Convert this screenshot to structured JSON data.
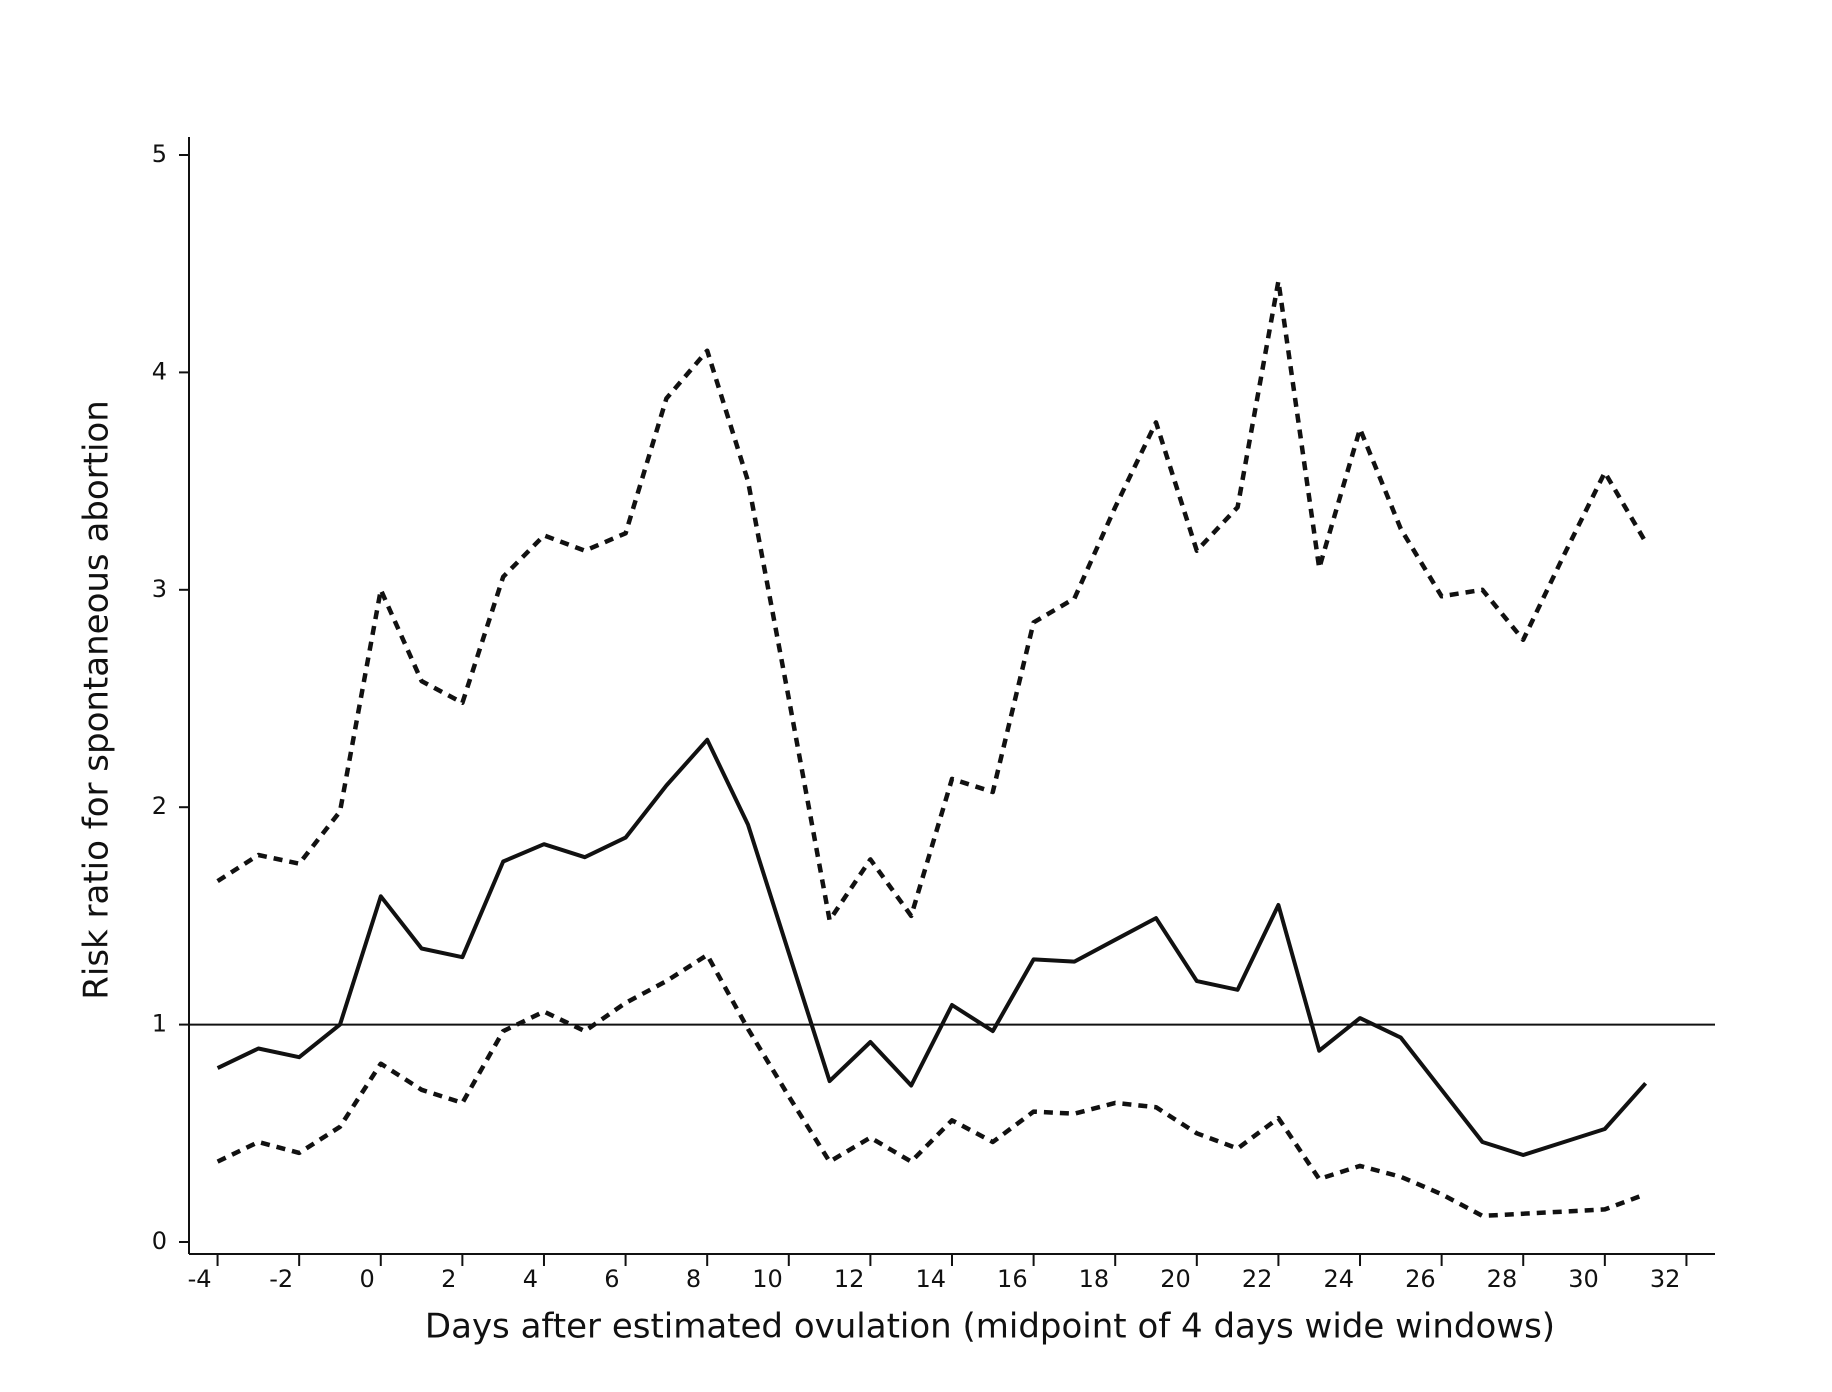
{
  "chart_data": {
    "type": "line",
    "x_label": "Days after estimated ovulation (midpoint of 4 days wide windows)",
    "y_label": "Risk ratio for spontaneous abortion",
    "x": [
      -4,
      -3,
      -2,
      -1,
      0,
      1,
      2,
      3,
      4,
      5,
      6,
      7,
      8,
      9,
      10,
      11,
      12,
      13,
      14,
      15,
      16,
      17,
      18,
      19,
      20,
      21,
      22,
      23,
      24,
      25,
      26,
      27,
      28,
      29,
      30,
      31
    ],
    "series": [
      {
        "color": "#111111",
        "style": "solid",
        "values": [
          0.8,
          0.89,
          0.85,
          1.0,
          1.59,
          1.35,
          1.31,
          1.75,
          1.83,
          1.77,
          1.86,
          2.1,
          2.31,
          1.92,
          1.33,
          0.74,
          0.92,
          0.72,
          1.09,
          0.97,
          1.3,
          1.29,
          1.39,
          1.49,
          1.2,
          1.16,
          1.55,
          0.88,
          1.03,
          0.94,
          0.7,
          0.46,
          0.4,
          0.46,
          0.52,
          0.73
        ]
      },
      {
        "color": "#111111",
        "style": "dashed",
        "values": [
          1.66,
          1.78,
          1.74,
          1.98,
          3.0,
          2.58,
          2.48,
          3.06,
          3.25,
          3.18,
          3.26,
          3.88,
          4.1,
          3.5,
          2.5,
          1.48,
          1.76,
          1.5,
          2.13,
          2.07,
          2.85,
          2.96,
          3.38,
          3.77,
          3.18,
          3.38,
          4.42,
          3.1,
          3.74,
          3.28,
          2.97,
          3.0,
          2.77,
          3.16,
          3.54,
          3.22
        ]
      },
      {
        "color": "#111111",
        "style": "dashed",
        "values": [
          0.37,
          0.46,
          0.41,
          0.53,
          0.82,
          0.7,
          0.64,
          0.97,
          1.06,
          0.97,
          1.1,
          1.2,
          1.32,
          0.98,
          0.67,
          0.37,
          0.48,
          0.37,
          0.56,
          0.46,
          0.6,
          0.59,
          0.64,
          0.62,
          0.5,
          0.43,
          0.57,
          0.29,
          0.35,
          0.3,
          0.22,
          0.12,
          0.13,
          0.14,
          0.15,
          0.22
        ]
      }
    ],
    "reference_line": 1,
    "xlim": [
      -4.7,
      32.7
    ],
    "ylim": [
      0,
      5
    ],
    "xticks": [
      -4,
      -2,
      0,
      2,
      4,
      6,
      8,
      10,
      12,
      14,
      16,
      18,
      20,
      22,
      24,
      26,
      28,
      30,
      32
    ],
    "yticks": [
      0,
      1,
      2,
      3,
      4,
      5
    ],
    "grid": false
  }
}
